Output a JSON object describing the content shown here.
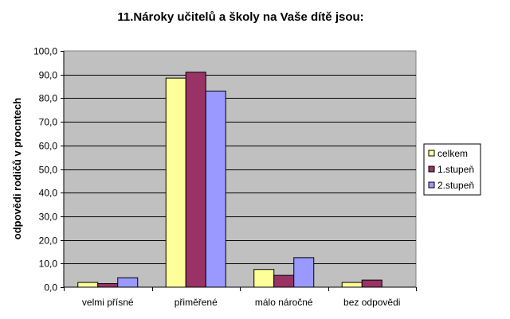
{
  "chart_data": {
    "type": "bar",
    "title": "11.Nároky učitelů a školy na Vaše dítě jsou:",
    "xlabel": "",
    "ylabel": "odpovědi rodičů v procntech",
    "ylim": [
      0,
      100
    ],
    "ytick_labels": [
      "0,0",
      "10,0",
      "20,0",
      "30,0",
      "40,0",
      "50,0",
      "60,0",
      "70,0",
      "80,0",
      "90,0",
      "100,0"
    ],
    "categories": [
      "velmi přísné",
      "přiměřené",
      "málo náročné",
      "bez odpovědi"
    ],
    "series": [
      {
        "name": "celkem",
        "color": "#FFFF99",
        "values": [
          2.0,
          88.5,
          7.5,
          2.0
        ]
      },
      {
        "name": "1.stupeň",
        "color": "#993366",
        "values": [
          1.5,
          91.0,
          5.0,
          3.0
        ]
      },
      {
        "name": "2.stupeň",
        "color": "#9999FF",
        "values": [
          4.0,
          83.0,
          12.5,
          0.0
        ]
      }
    ],
    "plot_background": "#C0C0C0",
    "grid": true,
    "legend_position": "right"
  }
}
